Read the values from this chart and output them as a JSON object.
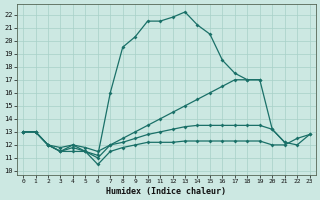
{
  "xlabel": "Humidex (Indice chaleur)",
  "bg_color": "#cce8e2",
  "grid_color": "#a8d0c8",
  "line_color": "#1a7068",
  "xlim": [
    -0.5,
    23.5
  ],
  "ylim": [
    9.7,
    22.8
  ],
  "xticks": [
    0,
    1,
    2,
    3,
    4,
    5,
    6,
    7,
    8,
    9,
    10,
    11,
    12,
    13,
    14,
    15,
    16,
    17,
    18,
    19,
    20,
    21,
    22,
    23
  ],
  "yticks": [
    10,
    11,
    12,
    13,
    14,
    15,
    16,
    17,
    18,
    19,
    20,
    21,
    22
  ],
  "curves": [
    {
      "x": [
        0,
        1,
        2,
        3,
        4,
        5,
        6,
        7,
        8,
        9,
        10,
        11,
        12,
        13,
        14,
        15,
        16,
        17,
        18,
        19
      ],
      "y": [
        13.0,
        13.0,
        12.0,
        11.5,
        11.5,
        11.5,
        11.2,
        16.0,
        19.5,
        20.3,
        21.5,
        21.5,
        21.8,
        22.2,
        21.2,
        20.5,
        18.5,
        17.5,
        17.0,
        17.0
      ]
    },
    {
      "x": [
        0,
        1,
        2,
        3,
        4,
        5,
        6,
        7,
        8,
        9,
        10,
        11,
        12,
        13,
        14,
        15,
        16,
        17,
        18,
        19,
        20,
        21
      ],
      "y": [
        13.0,
        13.0,
        12.0,
        11.5,
        11.8,
        11.5,
        11.0,
        12.0,
        12.5,
        13.0,
        13.5,
        14.0,
        14.5,
        15.0,
        15.5,
        16.0,
        16.5,
        17.0,
        17.0,
        17.0,
        13.2,
        12.2
      ]
    },
    {
      "x": [
        0,
        1,
        2,
        3,
        4,
        5,
        6,
        7,
        8,
        9,
        10,
        11,
        12,
        13,
        14,
        15,
        16,
        17,
        18,
        19,
        20,
        21,
        22,
        23
      ],
      "y": [
        13.0,
        13.0,
        12.0,
        11.8,
        12.0,
        11.8,
        11.5,
        12.0,
        12.2,
        12.5,
        12.8,
        13.0,
        13.2,
        13.4,
        13.5,
        13.5,
        13.5,
        13.5,
        13.5,
        13.5,
        13.2,
        12.2,
        12.0,
        12.8
      ]
    },
    {
      "x": [
        0,
        1,
        2,
        3,
        4,
        5,
        6,
        7,
        8,
        9,
        10,
        11,
        12,
        13,
        14,
        15,
        16,
        17,
        18,
        19,
        20,
        21,
        22,
        23
      ],
      "y": [
        13.0,
        13.0,
        12.0,
        11.5,
        12.0,
        11.5,
        10.5,
        11.5,
        11.8,
        12.0,
        12.2,
        12.2,
        12.2,
        12.3,
        12.3,
        12.3,
        12.3,
        12.3,
        12.3,
        12.3,
        12.0,
        12.0,
        12.5,
        12.8
      ]
    }
  ]
}
